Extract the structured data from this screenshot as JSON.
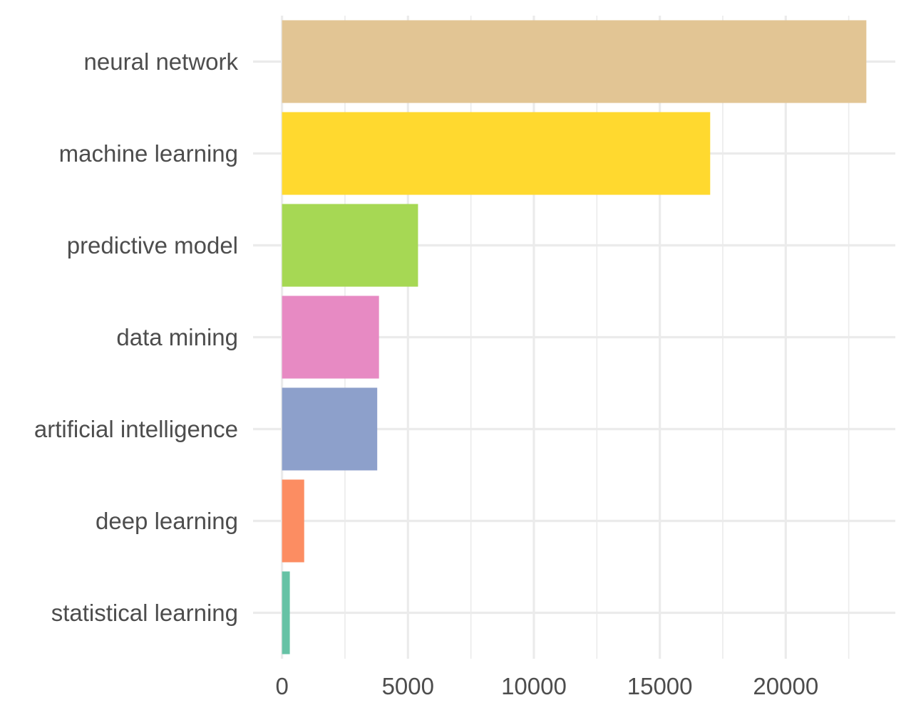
{
  "chart_data": {
    "type": "bar",
    "orientation": "horizontal",
    "categories": [
      "neural network",
      "machine learning",
      "predictive model",
      "data mining",
      "artificial intelligence",
      "deep learning",
      "statistical learning"
    ],
    "values": [
      23200,
      17000,
      5400,
      3850,
      3780,
      880,
      310
    ],
    "colors": [
      "#e2c594",
      "#ffd92f",
      "#a6d854",
      "#e78ac3",
      "#8da0cb",
      "#fc8d62",
      "#66c2a5"
    ],
    "title": "",
    "xlabel": "",
    "ylabel": "",
    "xlim": [
      -1150,
      24350
    ],
    "x_ticks": [
      0,
      5000,
      10000,
      15000,
      20000
    ],
    "x_tick_labels": [
      "0",
      "5000",
      "10000",
      "15000",
      "20000"
    ],
    "grid": true,
    "legend": "none"
  }
}
